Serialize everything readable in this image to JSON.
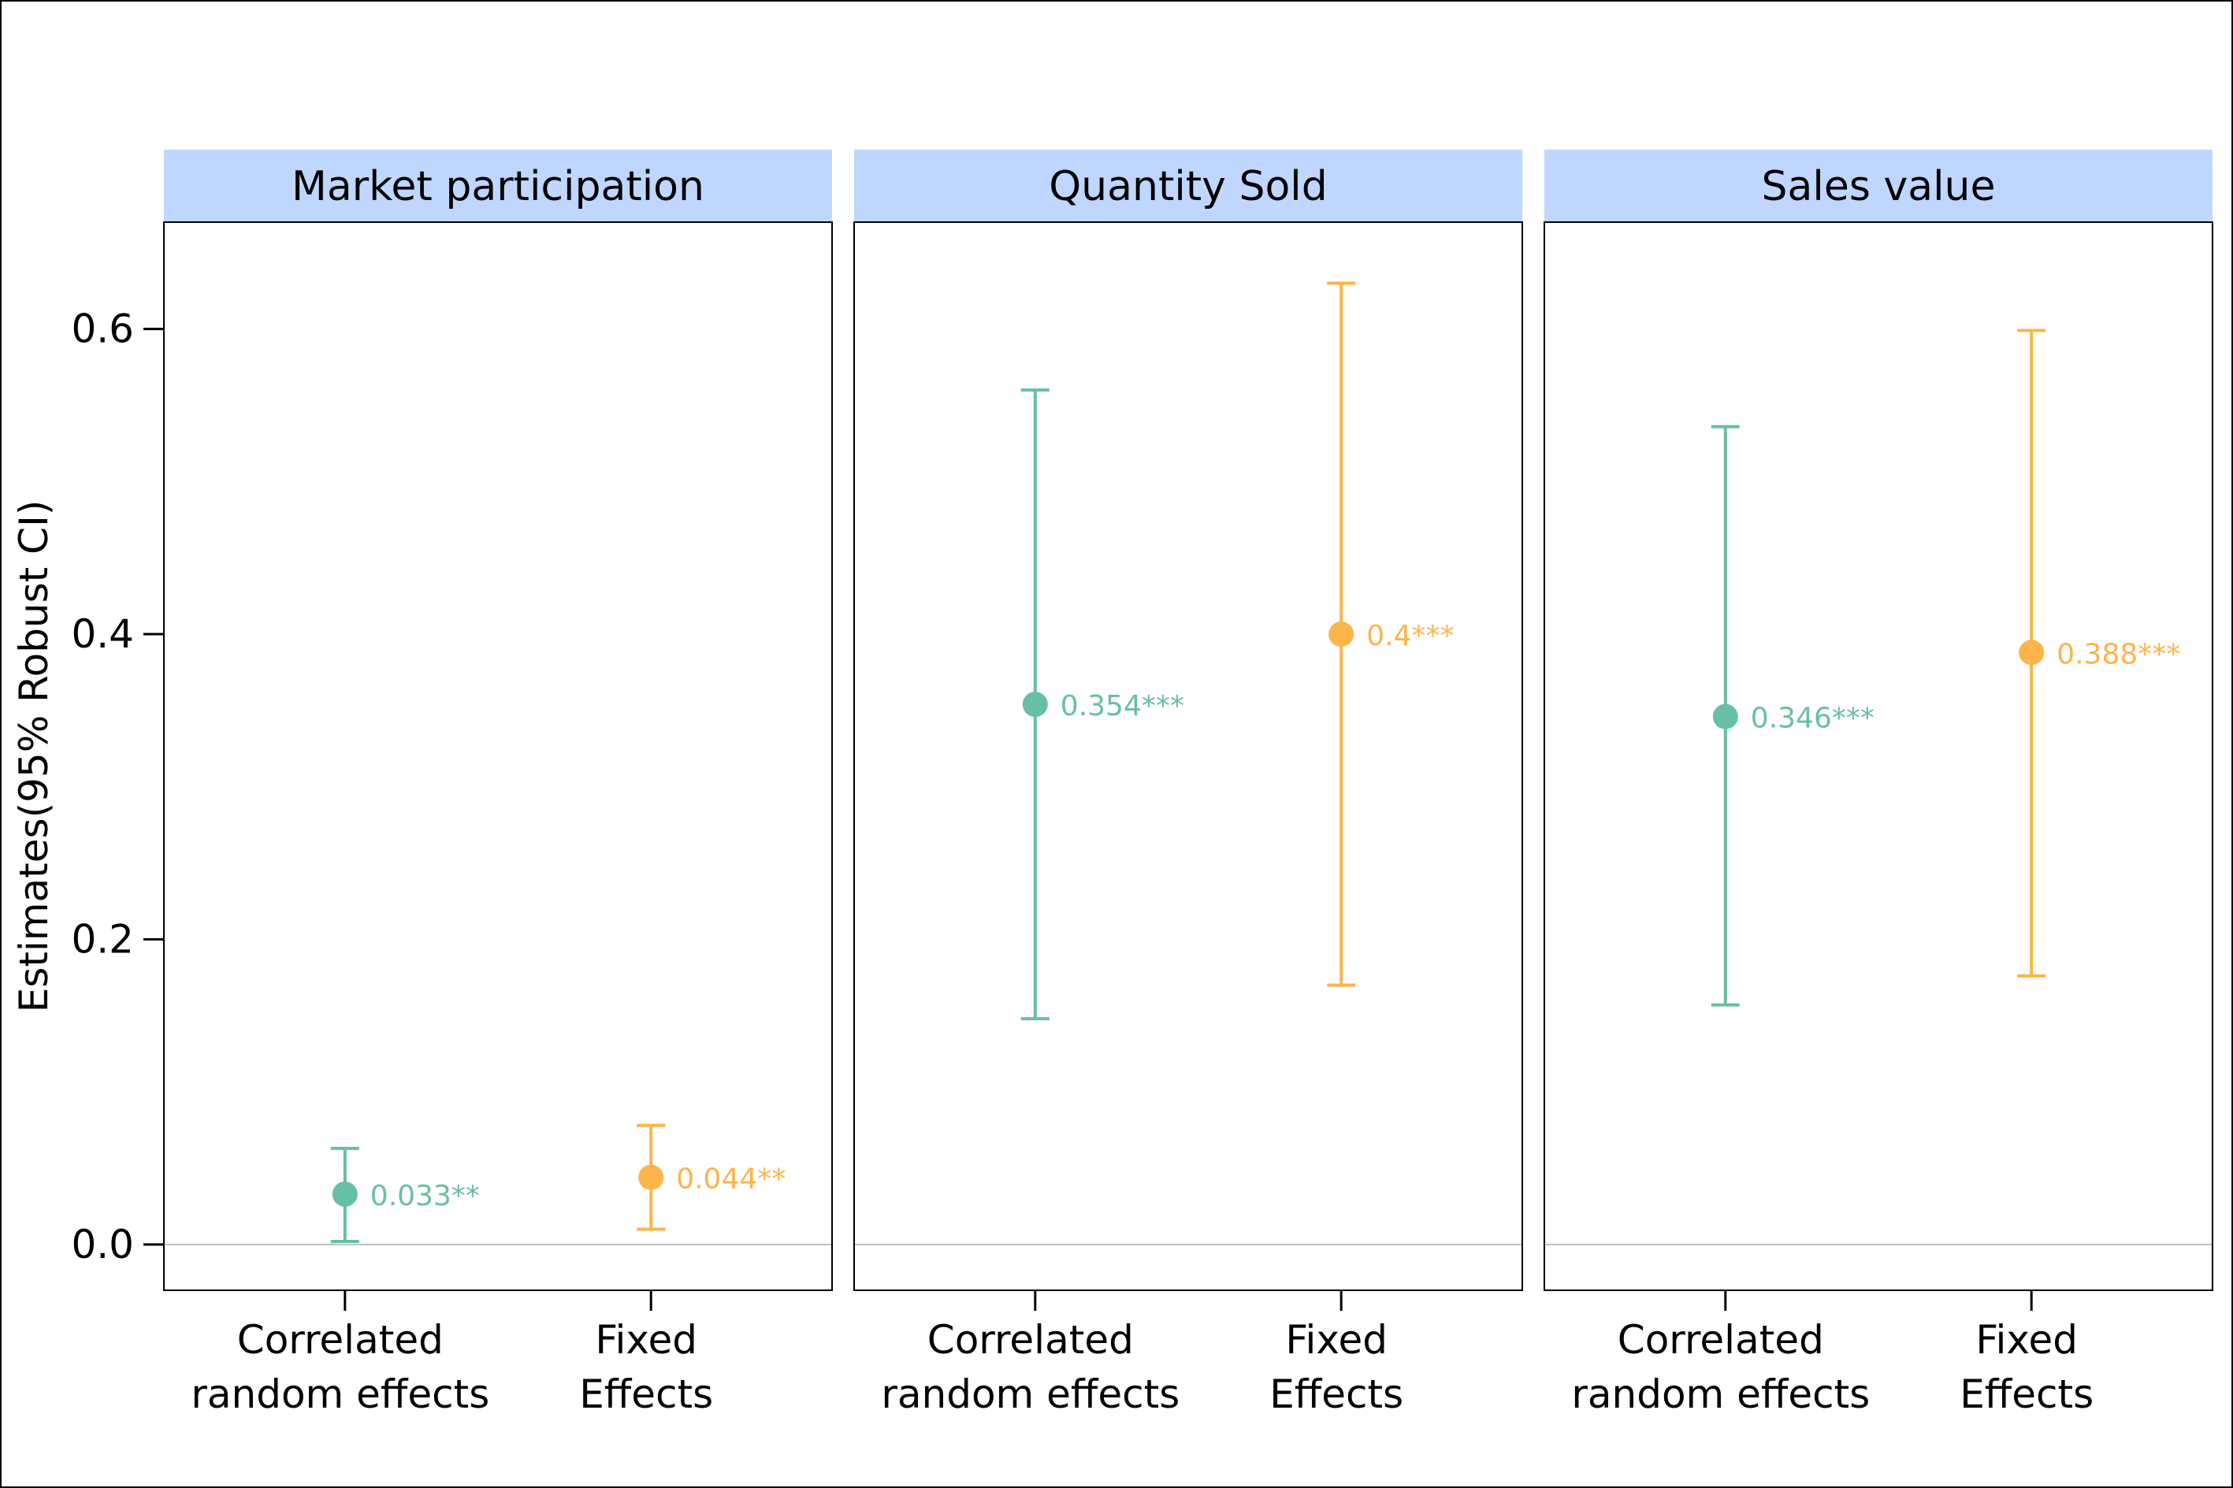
{
  "chart_data": {
    "type": "scatter",
    "subtype": "pointrange-facets",
    "ylabel": "Estimates(95% Robust CI)",
    "ylim": [
      -0.03,
      0.67
    ],
    "yticks": [
      0.0,
      0.2,
      0.4,
      0.6
    ],
    "ytick_labels": [
      "0.0",
      "0.2",
      "0.4",
      "0.6"
    ],
    "reference_line_y": 0,
    "grid": false,
    "legend": "none",
    "categories": [
      {
        "line1": "Correlated",
        "line2": "random effects"
      },
      {
        "line1": "Fixed",
        "line2": "Effects"
      }
    ],
    "colors": [
      "#66bfa6",
      "#fdb44b"
    ],
    "strip_color": "#bfd7ff",
    "facets": [
      {
        "title": "Market participation",
        "points": [
          {
            "estimate": 0.033,
            "lower": 0.002,
            "upper": 0.063,
            "label": "0.033**"
          },
          {
            "estimate": 0.044,
            "lower": 0.01,
            "upper": 0.078,
            "label": "0.044**"
          }
        ]
      },
      {
        "title": "Quantity Sold",
        "points": [
          {
            "estimate": 0.354,
            "lower": 0.148,
            "upper": 0.56,
            "label": "0.354***"
          },
          {
            "estimate": 0.4,
            "lower": 0.17,
            "upper": 0.63,
            "label": "0.4***"
          }
        ]
      },
      {
        "title": "Sales value",
        "points": [
          {
            "estimate": 0.346,
            "lower": 0.157,
            "upper": 0.536,
            "label": "0.346***"
          },
          {
            "estimate": 0.388,
            "lower": 0.176,
            "upper": 0.599,
            "label": "0.388***"
          }
        ]
      }
    ]
  }
}
